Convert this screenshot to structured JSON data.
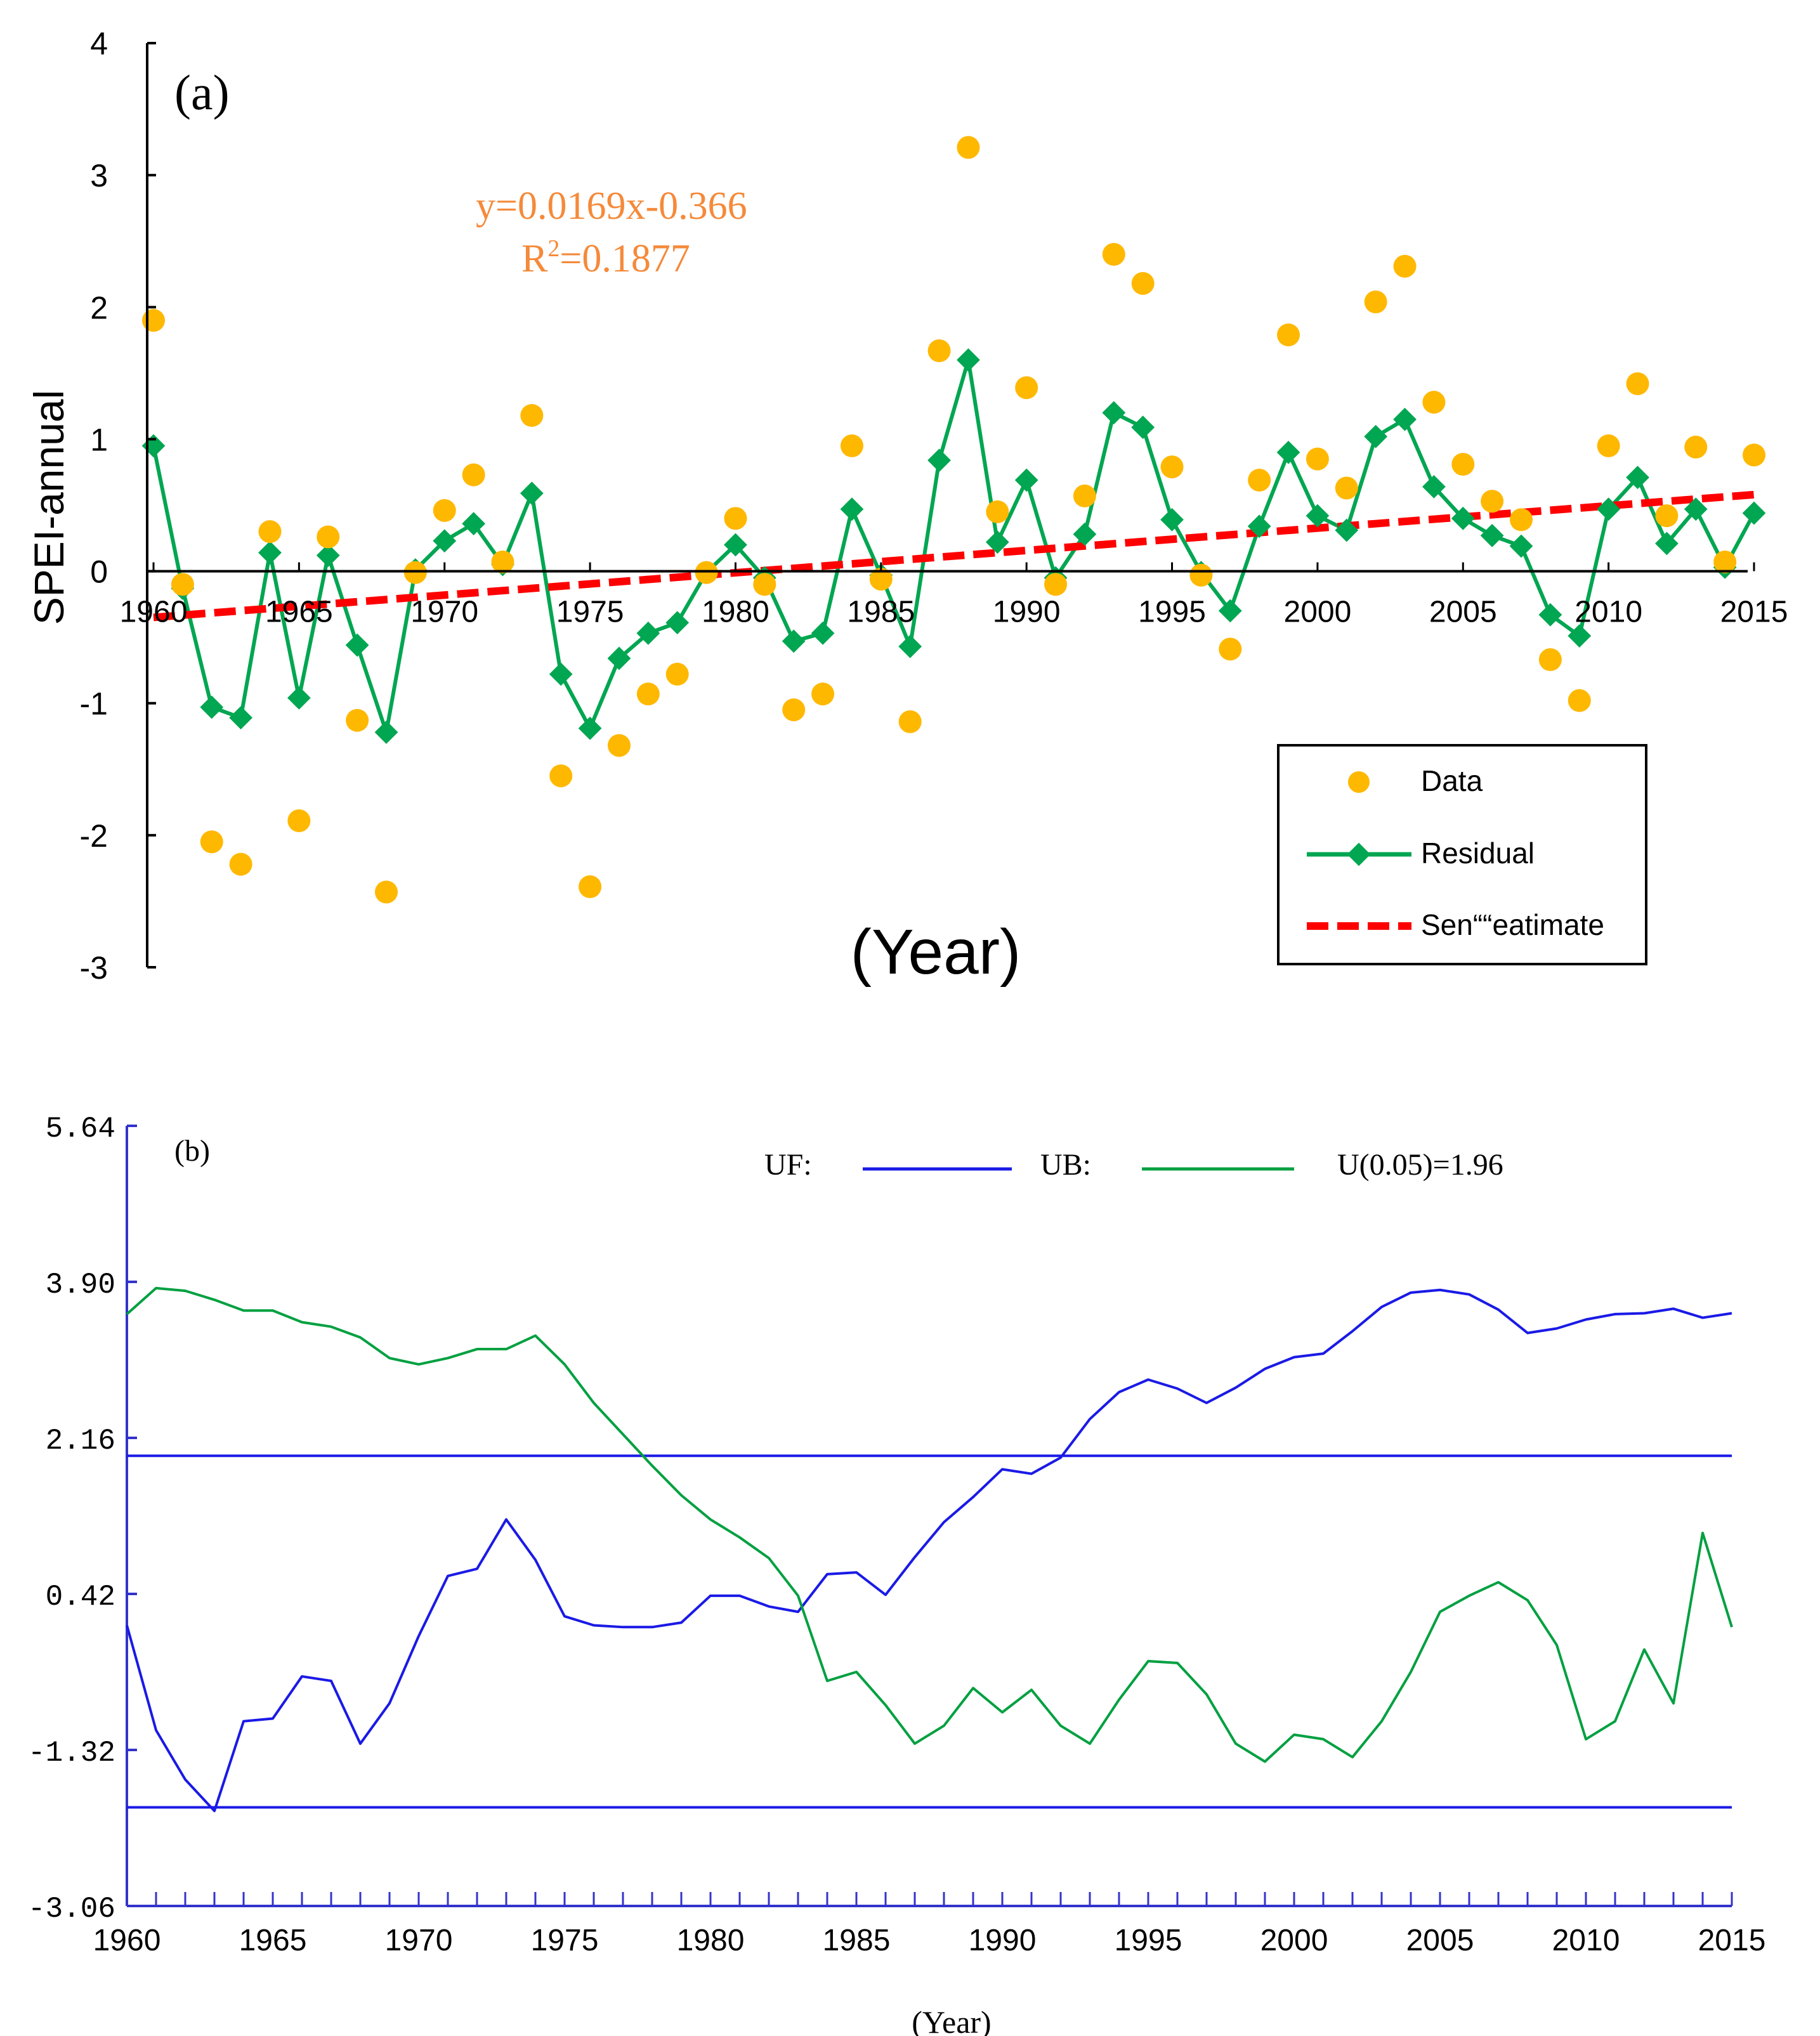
{
  "chart_data": [
    {
      "type": "scatter",
      "panel_label": "(a)",
      "ylabel": "SPEI-annual",
      "xlabel": "(Year)",
      "ylim": [
        -3,
        4
      ],
      "xlim": [
        1960,
        2015
      ],
      "yticks": [
        "4",
        "3",
        "2",
        "1",
        "0",
        "-1",
        "-2",
        "-3"
      ],
      "ytick_values": [
        4,
        3,
        2,
        1,
        0,
        -1,
        -2,
        -3
      ],
      "xticks": [
        "1960",
        "1965",
        "1970",
        "1975",
        "1980",
        "1985",
        "1990",
        "1995",
        "2000",
        "2005",
        "2010",
        "2015"
      ],
      "xtick_values": [
        1960,
        1965,
        1970,
        1975,
        1980,
        1985,
        1990,
        1995,
        2000,
        2005,
        2010,
        2015
      ],
      "equation": "y=0.0169x-0.366",
      "r2_prefix": "R",
      "r2_sup": "2",
      "r2_suffix": "=0.1877",
      "colors": {
        "data": "#FFB800",
        "residual": "#00A651",
        "sen": "#FF0000",
        "axis": "#000000",
        "equation": "#F58A3A"
      },
      "legend": {
        "position": "bottom-right",
        "entries": [
          "Data",
          "Residual",
          "Sen““eatimate"
        ]
      },
      "x": [
        1960,
        1961,
        1962,
        1963,
        1964,
        1965,
        1966,
        1967,
        1968,
        1969,
        1970,
        1971,
        1972,
        1973,
        1974,
        1975,
        1976,
        1977,
        1978,
        1979,
        1980,
        1981,
        1982,
        1983,
        1984,
        1985,
        1986,
        1987,
        1988,
        1989,
        1990,
        1991,
        1992,
        1993,
        1994,
        1995,
        1996,
        1997,
        1998,
        1999,
        2000,
        2001,
        2002,
        2003,
        2004,
        2005,
        2006,
        2007,
        2008,
        2009,
        2010,
        2011,
        2012,
        2013,
        2014,
        2015
      ],
      "series": [
        {
          "name": "Data",
          "values": [
            1.9,
            -0.1,
            -2.05,
            -2.22,
            0.3,
            -1.89,
            0.26,
            -1.13,
            -2.43,
            -0.01,
            0.46,
            0.73,
            0.07,
            1.18,
            -1.55,
            -2.39,
            -1.32,
            -0.93,
            -0.78,
            -0.01,
            0.4,
            -0.1,
            -1.05,
            -0.93,
            0.95,
            -0.06,
            -1.14,
            1.67,
            3.21,
            0.45,
            1.39,
            -0.1,
            0.57,
            2.4,
            2.18,
            0.79,
            -0.03,
            -0.59,
            0.69,
            1.79,
            0.85,
            0.63,
            2.04,
            2.31,
            1.28,
            0.81,
            0.53,
            0.39,
            -0.67,
            -0.98,
            0.95,
            1.42,
            0.42,
            0.94,
            0.07,
            0.88
          ]
        },
        {
          "name": "Residual",
          "values": [
            0.95,
            -0.13,
            -1.03,
            -1.11,
            0.14,
            -0.96,
            0.12,
            -0.56,
            -1.22,
            0.01,
            0.23,
            0.36,
            0.05,
            0.59,
            -0.78,
            -1.19,
            -0.66,
            -0.47,
            -0.39,
            -0.01,
            0.2,
            -0.05,
            -0.53,
            -0.47,
            0.47,
            -0.03,
            -0.57,
            0.84,
            1.6,
            0.22,
            0.69,
            -0.05,
            0.28,
            1.2,
            1.09,
            0.39,
            -0.01,
            -0.3,
            0.34,
            0.9,
            0.42,
            0.31,
            1.02,
            1.15,
            0.64,
            0.4,
            0.27,
            0.19,
            -0.33,
            -0.49,
            0.47,
            0.71,
            0.21,
            0.47,
            0.03,
            0.44
          ]
        }
      ],
      "trend": {
        "name": "Sen““eatimate",
        "x": [
          1960,
          2015
        ],
        "y": [
          -0.35,
          0.58
        ]
      }
    },
    {
      "type": "line",
      "panel_label": "(b)",
      "xlabel": "(Year)",
      "ylim": [
        -3.06,
        5.64
      ],
      "xlim": [
        1960,
        2015
      ],
      "yticks": [
        "5.64",
        "3.90",
        "2.16",
        "0.42",
        "-1.32",
        "-3.06"
      ],
      "ytick_values": [
        5.64,
        3.9,
        2.16,
        0.42,
        -1.32,
        -3.06
      ],
      "xticks": [
        "1960",
        "1965",
        "1970",
        "1975",
        "1980",
        "1985",
        "1990",
        "1995",
        "2000",
        "2005",
        "2010",
        "2015"
      ],
      "xtick_values": [
        1960,
        1965,
        1970,
        1975,
        1980,
        1985,
        1990,
        1995,
        2000,
        2005,
        2010,
        2015
      ],
      "colors": {
        "uf": "#1A1AE6",
        "ub": "#00A040",
        "threshold": "#1A1AE6",
        "axis": "#3333CC",
        "text": "#000000"
      },
      "legend": {
        "position": "top",
        "entries": [
          "UF:",
          "UB:",
          "U(0.05)=1.96"
        ]
      },
      "thresholds": [
        1.96,
        -1.96
      ],
      "x": [
        1960,
        1961,
        1962,
        1963,
        1964,
        1965,
        1966,
        1967,
        1968,
        1969,
        1970,
        1971,
        1972,
        1973,
        1974,
        1975,
        1976,
        1977,
        1978,
        1979,
        1980,
        1981,
        1982,
        1983,
        1984,
        1985,
        1986,
        1987,
        1988,
        1989,
        1990,
        1991,
        1992,
        1993,
        1994,
        1995,
        1996,
        1997,
        1998,
        1999,
        2000,
        2001,
        2002,
        2003,
        2004,
        2005,
        2006,
        2007,
        2008,
        2009,
        2010,
        2011,
        2012,
        2013,
        2014,
        2015
      ],
      "series": [
        {
          "name": "UF",
          "values": [
            0.07,
            -1.1,
            -1.65,
            -2.0,
            -1.0,
            -0.97,
            -0.5,
            -0.55,
            -1.25,
            -0.8,
            -0.05,
            0.62,
            0.7,
            1.25,
            0.8,
            0.17,
            0.07,
            0.05,
            0.05,
            0.1,
            0.4,
            0.4,
            0.28,
            0.22,
            0.64,
            0.66,
            0.41,
            0.83,
            1.22,
            1.5,
            1.81,
            1.76,
            1.94,
            2.37,
            2.67,
            2.81,
            2.71,
            2.55,
            2.72,
            2.93,
            3.06,
            3.1,
            3.35,
            3.62,
            3.78,
            3.81,
            3.76,
            3.59,
            3.33,
            3.38,
            3.48,
            3.54,
            3.55,
            3.6,
            3.5,
            3.55
          ]
        },
        {
          "name": "UB",
          "values": [
            3.54,
            3.83,
            3.8,
            3.7,
            3.58,
            3.58,
            3.45,
            3.4,
            3.28,
            3.05,
            2.98,
            3.05,
            3.15,
            3.15,
            3.3,
            2.98,
            2.55,
            2.2,
            1.85,
            1.52,
            1.25,
            1.05,
            0.82,
            0.4,
            -0.55,
            -0.45,
            -0.82,
            -1.25,
            -1.05,
            -0.63,
            -0.9,
            -0.65,
            -1.05,
            -1.25,
            -0.76,
            -0.33,
            -0.35,
            -0.7,
            -1.25,
            -1.45,
            -1.15,
            -1.2,
            -1.4,
            -1.0,
            -0.45,
            0.22,
            0.4,
            0.55,
            0.35,
            -0.15,
            -1.2,
            -1.0,
            -0.2,
            -0.8,
            1.1,
            0.05
          ]
        }
      ]
    }
  ]
}
